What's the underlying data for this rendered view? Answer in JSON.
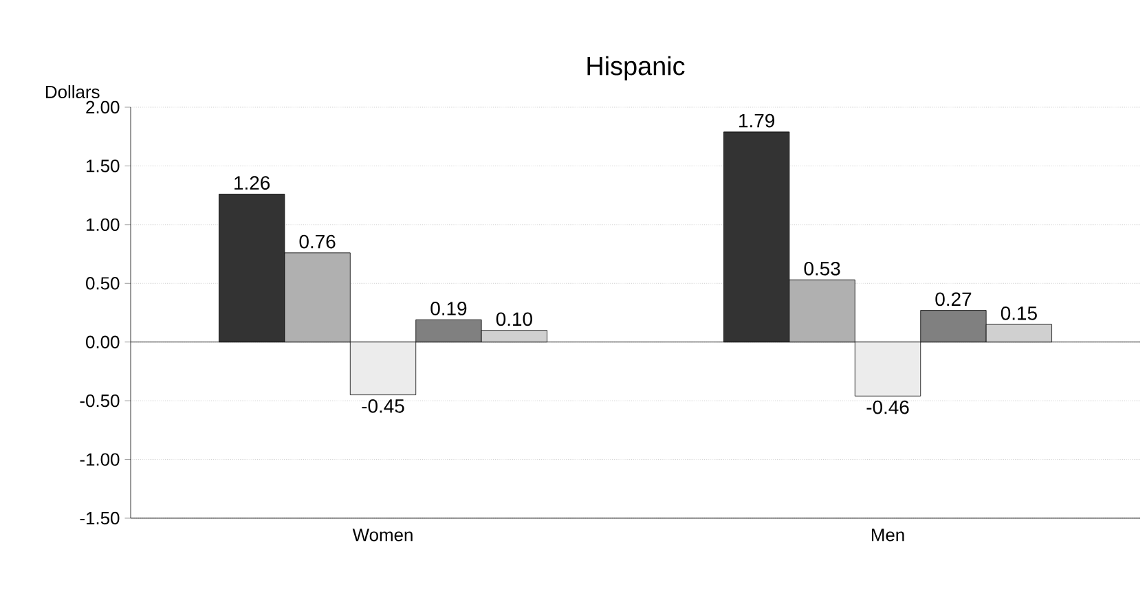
{
  "chart_data": {
    "type": "bar",
    "title": "Hispanic",
    "ylabel": "Dollars",
    "categories": [
      "Women",
      "Men"
    ],
    "series": [
      {
        "color": "#333333",
        "values": [
          1.26,
          1.79
        ],
        "value_labels": [
          "1.26",
          "1.79"
        ]
      },
      {
        "color": "#b0b0b0",
        "values": [
          0.76,
          0.53
        ],
        "value_labels": [
          "0.76",
          "0.53"
        ]
      },
      {
        "color": "#ececec",
        "values": [
          -0.45,
          -0.46
        ],
        "value_labels": [
          "-0.45",
          "-0.46"
        ]
      },
      {
        "color": "#808080",
        "values": [
          0.19,
          0.27
        ],
        "value_labels": [
          "0.19",
          "0.27"
        ]
      },
      {
        "color": "#d0d0d0",
        "values": [
          0.1,
          0.15
        ],
        "value_labels": [
          "0.10",
          "0.15"
        ]
      }
    ],
    "ylim": [
      -1.5,
      2.0
    ],
    "yticks": [
      {
        "value": -1.5,
        "label": "-1.50"
      },
      {
        "value": -1.0,
        "label": "-1.00"
      },
      {
        "value": -0.5,
        "label": "-0.50"
      },
      {
        "value": 0,
        "label": "0.00"
      },
      {
        "value": 0.5,
        "label": "0.50"
      },
      {
        "value": 1.0,
        "label": "1.00"
      },
      {
        "value": 1.5,
        "label": "1.50"
      },
      {
        "value": 2.0,
        "label": "2.00"
      }
    ],
    "grid": "y"
  }
}
